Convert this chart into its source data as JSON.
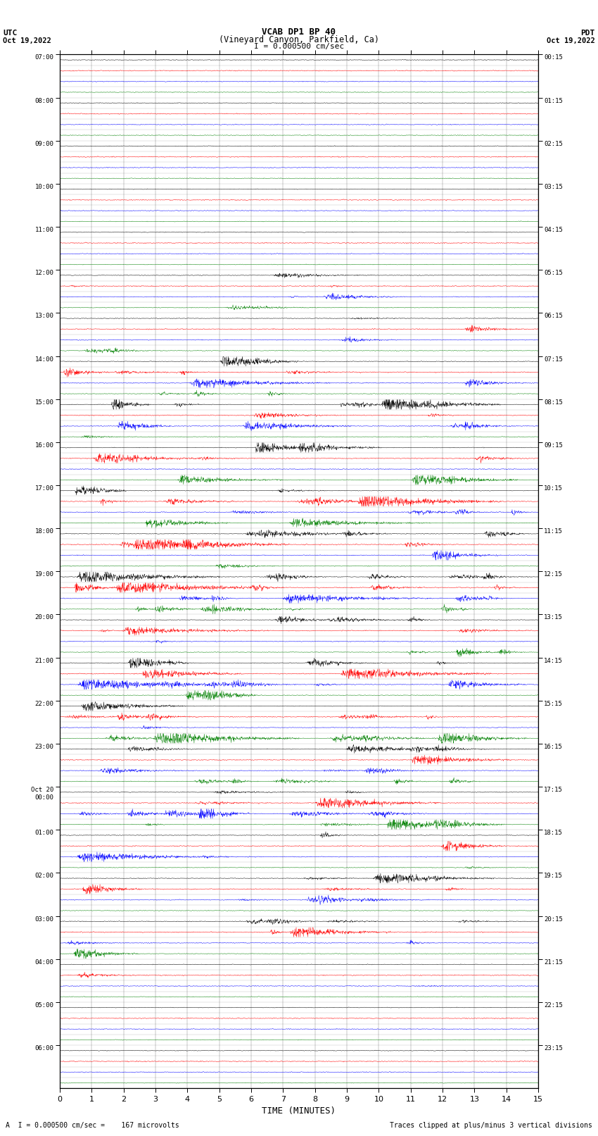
{
  "title_line1": "VCAB DP1 BP 40",
  "title_line2": "(Vineyard Canyon, Parkfield, Ca)",
  "scale_text": "I = 0.000500 cm/sec",
  "left_label_line1": "UTC",
  "left_label_line2": "Oct 19,2022",
  "right_label_line1": "PDT",
  "right_label_line2": "Oct 19,2022",
  "xlabel": "TIME (MINUTES)",
  "bottom_left_text": "A  I = 0.000500 cm/sec =    167 microvolts",
  "bottom_right_text": "Traces clipped at plus/minus 3 vertical divisions",
  "utc_times": [
    "07:00",
    "08:00",
    "09:00",
    "10:00",
    "11:00",
    "12:00",
    "13:00",
    "14:00",
    "15:00",
    "16:00",
    "17:00",
    "18:00",
    "19:00",
    "20:00",
    "21:00",
    "22:00",
    "23:00",
    "Oct 20\n00:00",
    "01:00",
    "02:00",
    "03:00",
    "04:00",
    "05:00",
    "06:00"
  ],
  "pdt_times": [
    "00:15",
    "01:15",
    "02:15",
    "03:15",
    "04:15",
    "05:15",
    "06:15",
    "07:15",
    "08:15",
    "09:15",
    "10:15",
    "11:15",
    "12:15",
    "13:15",
    "14:15",
    "15:15",
    "16:15",
    "17:15",
    "18:15",
    "19:15",
    "20:15",
    "21:15",
    "22:15",
    "23:15"
  ],
  "n_hours": 24,
  "n_channels": 4,
  "colors": [
    "black",
    "red",
    "blue",
    "green"
  ],
  "xlim": [
    0,
    15
  ],
  "xticks": [
    0,
    1,
    2,
    3,
    4,
    5,
    6,
    7,
    8,
    9,
    10,
    11,
    12,
    13,
    14,
    15
  ],
  "bg_color": "white",
  "seed": 12345
}
